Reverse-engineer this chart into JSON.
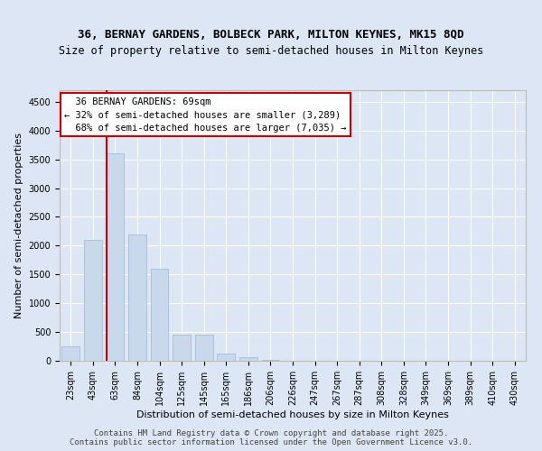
{
  "title1": "36, BERNAY GARDENS, BOLBECK PARK, MILTON KEYNES, MK15 8QD",
  "title2": "Size of property relative to semi-detached houses in Milton Keynes",
  "xlabel": "Distribution of semi-detached houses by size in Milton Keynes",
  "ylabel": "Number of semi-detached properties",
  "categories": [
    "23sqm",
    "43sqm",
    "63sqm",
    "84sqm",
    "104sqm",
    "125sqm",
    "145sqm",
    "165sqm",
    "186sqm",
    "206sqm",
    "226sqm",
    "247sqm",
    "267sqm",
    "287sqm",
    "308sqm",
    "328sqm",
    "349sqm",
    "369sqm",
    "389sqm",
    "410sqm",
    "430sqm"
  ],
  "values": [
    250,
    2100,
    3600,
    2200,
    1600,
    450,
    450,
    120,
    70,
    10,
    0,
    0,
    0,
    0,
    0,
    0,
    0,
    0,
    0,
    0,
    0
  ],
  "bar_color": "#c9d9ec",
  "bar_edge_color": "#9ab5d5",
  "marker_bin_index": 2,
  "marker_label": "36 BERNAY GARDENS: 69sqm",
  "smaller_pct": "32%",
  "smaller_n": "3,289",
  "larger_pct": "68%",
  "larger_n": "7,035",
  "annotation_box_facecolor": "#ffffff",
  "annotation_box_edgecolor": "#cc0000",
  "marker_line_color": "#cc0000",
  "ylim": [
    0,
    4700
  ],
  "yticks": [
    0,
    500,
    1000,
    1500,
    2000,
    2500,
    3000,
    3500,
    4000,
    4500
  ],
  "fig_bg_color": "#dce6f4",
  "plot_bg_color": "#dce6f4",
  "grid_color": "#ffffff",
  "footer": "Contains HM Land Registry data © Crown copyright and database right 2025.\nContains public sector information licensed under the Open Government Licence v3.0.",
  "title1_fontsize": 9,
  "title2_fontsize": 8.5,
  "ylabel_fontsize": 8,
  "xlabel_fontsize": 8,
  "tick_fontsize": 7,
  "ann_fontsize": 7.5,
  "footer_fontsize": 6.5
}
